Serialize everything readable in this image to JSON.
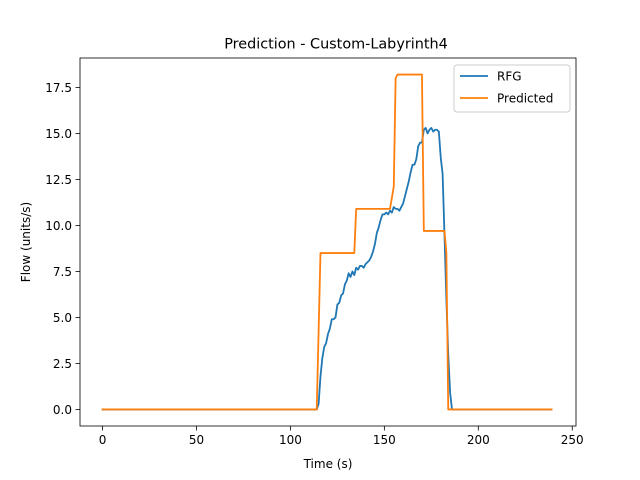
{
  "chart_data": {
    "type": "line",
    "title": "Prediction - Custom-Labyrinth4",
    "xlabel": "Time (s)",
    "ylabel": "Flow (units/s)",
    "xlim": [
      -12,
      252
    ],
    "ylim": [
      -0.9,
      19.1
    ],
    "xticks": [
      0,
      50,
      100,
      150,
      200,
      250
    ],
    "xtick_labels": [
      "0",
      "50",
      "100",
      "150",
      "200",
      "250"
    ],
    "yticks": [
      0,
      2.5,
      5,
      7.5,
      10,
      12.5,
      15,
      17.5
    ],
    "ytick_labels": [
      "0.0",
      "2.5",
      "5.0",
      "7.5",
      "10.0",
      "12.5",
      "15.0",
      "17.5"
    ],
    "grid": false,
    "legend_position": "upper right",
    "series": [
      {
        "name": "RFG",
        "color": "#1f77b4",
        "points": [
          [
            0,
            0
          ],
          [
            114,
            0
          ],
          [
            115,
            0.3
          ],
          [
            116,
            1.8
          ],
          [
            117,
            2.8
          ],
          [
            118,
            3.4
          ],
          [
            119,
            3.6
          ],
          [
            120,
            4.1
          ],
          [
            121,
            4.4
          ],
          [
            122,
            4.9
          ],
          [
            123,
            4.9
          ],
          [
            124,
            5.0
          ],
          [
            125,
            5.7
          ],
          [
            126,
            5.8
          ],
          [
            127,
            6.2
          ],
          [
            128,
            6.3
          ],
          [
            129,
            6.8
          ],
          [
            130,
            7.0
          ],
          [
            131,
            7.4
          ],
          [
            132,
            7.2
          ],
          [
            133,
            7.5
          ],
          [
            134,
            7.3
          ],
          [
            135,
            7.7
          ],
          [
            136,
            7.6
          ],
          [
            137,
            7.8
          ],
          [
            138,
            7.8
          ],
          [
            139,
            7.7
          ],
          [
            140,
            7.9
          ],
          [
            141,
            8.0
          ],
          [
            142,
            8.1
          ],
          [
            143,
            8.3
          ],
          [
            144,
            8.6
          ],
          [
            145,
            9.0
          ],
          [
            146,
            9.6
          ],
          [
            147,
            9.9
          ],
          [
            148,
            10.3
          ],
          [
            149,
            10.6
          ],
          [
            150,
            10.6
          ],
          [
            151,
            10.7
          ],
          [
            152,
            10.6
          ],
          [
            153,
            10.8
          ],
          [
            154,
            10.7
          ],
          [
            155,
            11.0
          ],
          [
            156,
            10.9
          ],
          [
            157,
            10.9
          ],
          [
            158,
            10.8
          ],
          [
            159,
            11.0
          ],
          [
            160,
            11.2
          ],
          [
            161,
            11.6
          ],
          [
            162,
            12.0
          ],
          [
            163,
            12.4
          ],
          [
            164,
            12.9
          ],
          [
            165,
            13.3
          ],
          [
            166,
            13.3
          ],
          [
            167,
            13.6
          ],
          [
            168,
            14.3
          ],
          [
            169,
            14.5
          ],
          [
            170,
            14.5
          ],
          [
            171,
            15.2
          ],
          [
            172,
            15.3
          ],
          [
            173,
            15.0
          ],
          [
            174,
            15.2
          ],
          [
            175,
            15.3
          ],
          [
            176,
            15.1
          ],
          [
            177,
            15.2
          ],
          [
            178,
            15.2
          ],
          [
            179,
            15.1
          ],
          [
            180,
            13.7
          ],
          [
            181,
            12.8
          ],
          [
            182,
            9.5
          ],
          [
            183,
            6.0
          ],
          [
            184,
            3.0
          ],
          [
            185,
            0.9
          ],
          [
            186,
            0
          ],
          [
            239,
            0
          ]
        ]
      },
      {
        "name": "Predicted",
        "color": "#ff7f0e",
        "points": [
          [
            0,
            0
          ],
          [
            114,
            0
          ],
          [
            116,
            8.5
          ],
          [
            134,
            8.5
          ],
          [
            135,
            10.9
          ],
          [
            153,
            10.9
          ],
          [
            155,
            12.1
          ],
          [
            156,
            18.0
          ],
          [
            157,
            18.2
          ],
          [
            170,
            18.2
          ],
          [
            171,
            9.7
          ],
          [
            182,
            9.7
          ],
          [
            183,
            8.5
          ],
          [
            184,
            0
          ],
          [
            239,
            0
          ]
        ]
      }
    ]
  }
}
